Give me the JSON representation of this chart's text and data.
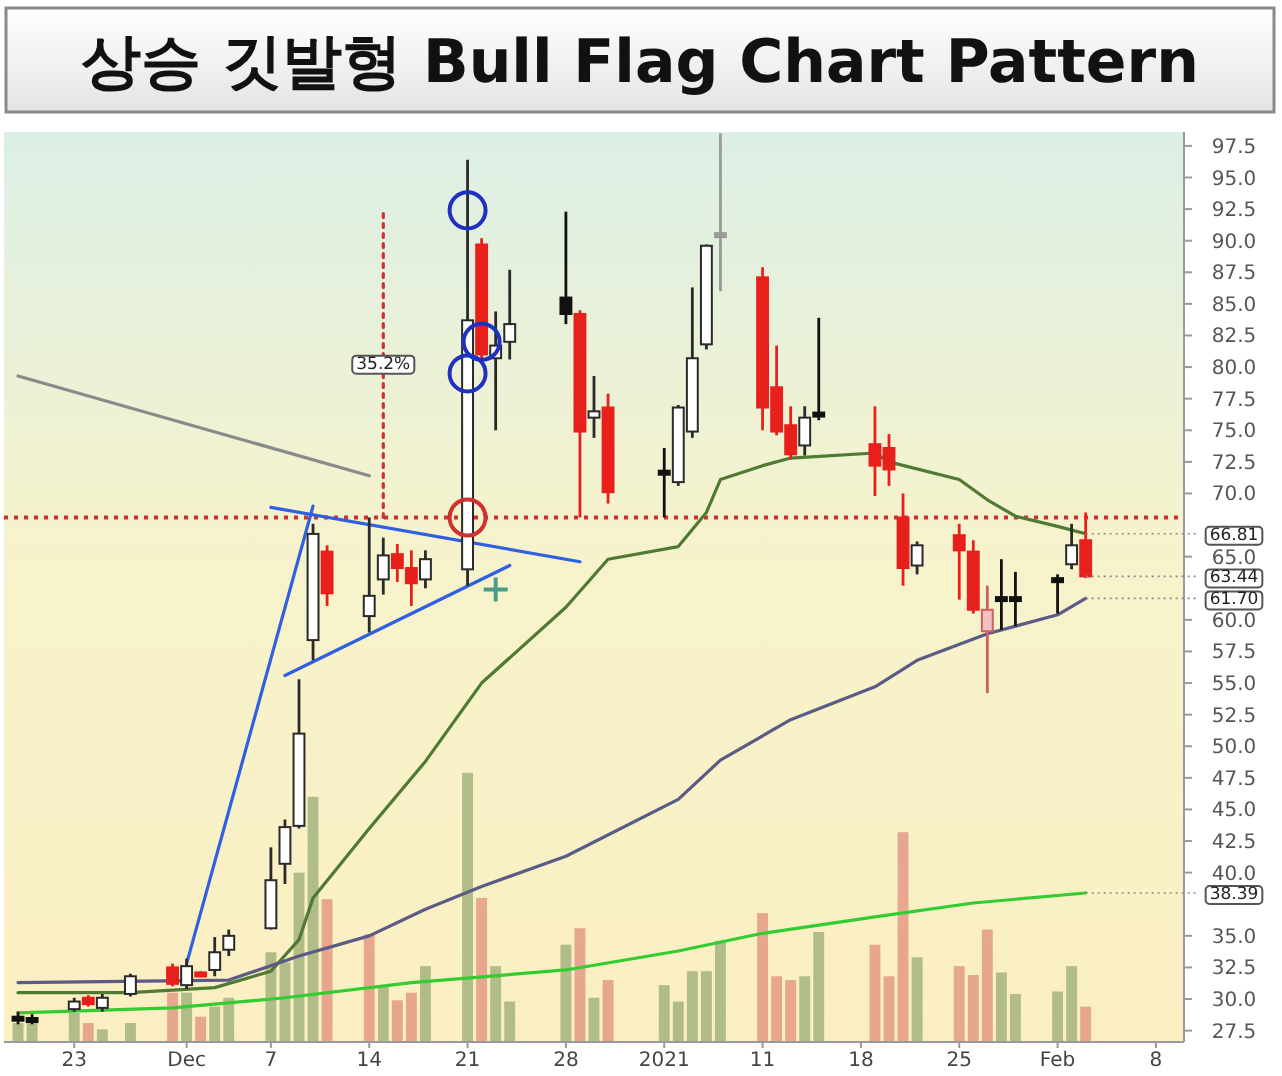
{
  "chart_data": {
    "type": "candlestick",
    "title": "상승 깃발형 Bull Flag Chart Pattern",
    "x": [
      "2020-11-19",
      "2020-11-20",
      "2020-11-23",
      "2020-11-24",
      "2020-11-25",
      "2020-11-27",
      "2020-11-30",
      "2020-12-01",
      "2020-12-02",
      "2020-12-03",
      "2020-12-04",
      "2020-12-07",
      "2020-12-08",
      "2020-12-09",
      "2020-12-10",
      "2020-12-11",
      "2020-12-14",
      "2020-12-15",
      "2020-12-16",
      "2020-12-17",
      "2020-12-18",
      "2020-12-21",
      "2020-12-22",
      "2020-12-23",
      "2020-12-24",
      "2020-12-28",
      "2020-12-29",
      "2020-12-30",
      "2020-12-31",
      "2021-01-04",
      "2021-01-05",
      "2021-01-06",
      "2021-01-07",
      "2021-01-08",
      "2021-01-11",
      "2021-01-12",
      "2021-01-13",
      "2021-01-14",
      "2021-01-15",
      "2021-01-19",
      "2021-01-20",
      "2021-01-21",
      "2021-01-22",
      "2021-01-25",
      "2021-01-26",
      "2021-01-27",
      "2021-01-28",
      "2021-01-29",
      "2021-02-01",
      "2021-02-02",
      "2021-02-03"
    ],
    "ohlc": [
      [
        28.6,
        29.0,
        28.0,
        28.4
      ],
      [
        28.5,
        28.8,
        28.0,
        28.3
      ],
      [
        29.2,
        30.1,
        29.0,
        29.8
      ],
      [
        30.1,
        30.3,
        29.4,
        29.6
      ],
      [
        29.3,
        30.4,
        29.0,
        30.1
      ],
      [
        30.4,
        32.0,
        30.2,
        31.8
      ],
      [
        32.5,
        32.8,
        31.0,
        31.2
      ],
      [
        31.1,
        33.2,
        30.8,
        32.6
      ],
      [
        32.1,
        32.2,
        31.8,
        31.9
      ],
      [
        32.3,
        34.9,
        31.8,
        33.7
      ],
      [
        33.9,
        35.5,
        33.4,
        35.0
      ],
      [
        35.6,
        42.0,
        35.5,
        39.4
      ],
      [
        40.7,
        44.2,
        39.1,
        43.6
      ],
      [
        43.7,
        55.3,
        43.5,
        51.0
      ],
      [
        58.4,
        67.6,
        56.8,
        66.8
      ],
      [
        65.4,
        65.9,
        61.1,
        62.1
      ],
      [
        60.3,
        68.1,
        59.0,
        61.9
      ],
      [
        63.2,
        66.5,
        62.0,
        65.1
      ],
      [
        65.2,
        66.0,
        63.0,
        64.1
      ],
      [
        64.1,
        65.5,
        61.1,
        62.9
      ],
      [
        63.2,
        65.5,
        62.5,
        64.8
      ],
      [
        64.0,
        96.4,
        62.7,
        83.7
      ],
      [
        89.7,
        90.2,
        80.5,
        81.0
      ],
      [
        80.7,
        84.4,
        75.0,
        81.7
      ],
      [
        82.0,
        87.7,
        80.6,
        83.4
      ],
      [
        84.2,
        92.3,
        83.4,
        85.5
      ],
      [
        84.2,
        84.5,
        68.1,
        74.9
      ],
      [
        76.0,
        79.3,
        74.4,
        76.5
      ],
      [
        76.8,
        77.9,
        69.2,
        70.1
      ],
      [
        71.6,
        73.6,
        68.1,
        71.8
      ],
      [
        70.9,
        77.0,
        70.6,
        76.8
      ],
      [
        74.9,
        86.3,
        74.4,
        80.7
      ],
      [
        81.8,
        89.7,
        81.4,
        89.6
      ],
      [
        90.6,
        98.5,
        86.0,
        90.4
      ],
      [
        87.1,
        87.9,
        75.0,
        76.8
      ],
      [
        78.4,
        81.7,
        74.6,
        74.9
      ],
      [
        75.4,
        76.9,
        72.7,
        73.1
      ],
      [
        73.8,
        76.9,
        73.0,
        76.0
      ],
      [
        76.2,
        83.9,
        75.8,
        76.4
      ],
      [
        73.9,
        76.9,
        69.8,
        72.2
      ],
      [
        73.6,
        74.7,
        70.6,
        71.9
      ],
      [
        68.1,
        70.0,
        62.7,
        64.1
      ],
      [
        64.3,
        66.2,
        63.6,
        65.9
      ],
      [
        66.7,
        67.6,
        61.6,
        65.5
      ],
      [
        65.4,
        66.3,
        60.5,
        60.8
      ],
      [
        59.1,
        62.7,
        54.2,
        60.8
      ],
      [
        61.6,
        64.8,
        59.2,
        61.8
      ],
      [
        61.6,
        63.8,
        59.5,
        61.8
      ],
      [
        63.1,
        63.6,
        60.5,
        63.3
      ],
      [
        64.4,
        67.6,
        64.0,
        65.9
      ],
      [
        66.3,
        68.5,
        63.3,
        63.44
      ]
    ],
    "colors": [
      "#111111",
      "#111111",
      "#ffffff",
      "#e8201c",
      "#ffffff",
      "#ffffff",
      "#e8201c",
      "#ffffff",
      "#e8201c",
      "#ffffff",
      "#ffffff",
      "#ffffff",
      "#ffffff",
      "#ffffff",
      "#ffffff",
      "#e8201c",
      "#ffffff",
      "#ffffff",
      "#e8201c",
      "#e8201c",
      "#ffffff",
      "#ffffff",
      "#e8201c",
      "#ffffff",
      "#ffffff",
      "#111111",
      "#e8201c",
      "#ffffff",
      "#e8201c",
      "#111111",
      "#ffffff",
      "#ffffff",
      "#ffffff",
      "#9a9a9a",
      "#e8201c",
      "#e8201c",
      "#e8201c",
      "#ffffff",
      "#111111",
      "#e8201c",
      "#e8201c",
      "#e8201c",
      "#ffffff",
      "#e8201c",
      "#e8201c",
      "#f2c0c0",
      "#111111",
      "#111111",
      "#111111",
      "#ffffff",
      "#e8201c"
    ],
    "series": [
      {
        "type": "bar",
        "values": [
          28.1,
          28.4,
          28.9,
          28.1,
          27.6,
          28.1,
          30.5,
          30.5,
          28.6,
          29.4,
          30.1,
          33.7,
          32.9,
          40.0,
          46.0,
          37.9,
          35.1,
          31.1,
          29.9,
          30.5,
          32.6,
          47.9,
          38.0,
          32.6,
          29.8,
          34.3,
          35.6,
          30.1,
          31.5,
          31.1,
          29.8,
          32.2,
          32.2,
          34.6,
          36.8,
          31.8,
          31.5,
          31.8,
          35.3,
          34.3,
          31.8,
          43.2,
          33.3,
          32.6,
          31.9,
          35.5,
          32.1,
          30.4,
          30.6,
          32.6,
          29.4
        ],
        "colors": [
          "#a3b37f",
          "#a3b37f",
          "#a3b37f",
          "#e39a86",
          "#a3b37f",
          "#a3b37f",
          "#e39a86",
          "#a3b37f",
          "#e39a86",
          "#a3b37f",
          "#a3b37f",
          "#a3b37f",
          "#a3b37f",
          "#a3b37f",
          "#a3b37f",
          "#e39a86",
          "#e39a86",
          "#a3b37f",
          "#e39a86",
          "#e39a86",
          "#a3b37f",
          "#a3b37f",
          "#e39a86",
          "#a3b37f",
          "#a3b37f",
          "#a3b37f",
          "#e39a86",
          "#a3b37f",
          "#e39a86",
          "#a3b37f",
          "#a3b37f",
          "#a3b37f",
          "#a3b37f",
          "#a3b37f",
          "#e39a86",
          "#e39a86",
          "#e39a86",
          "#a3b37f",
          "#a3b37f",
          "#e39a86",
          "#e39a86",
          "#e39a86",
          "#a3b37f",
          "#e39a86",
          "#e39a86",
          "#e39a86",
          "#a3b37f",
          "#a3b37f",
          "#a3b37f",
          "#a3b37f",
          "#e39a86"
        ]
      },
      {
        "type": "line",
        "color": "#4f7a33",
        "x": [
          "2020-11-19",
          "2020-11-27",
          "2020-12-03",
          "2020-12-07",
          "2020-12-09",
          "2020-12-10",
          "2020-12-14",
          "2020-12-18",
          "2020-12-22",
          "2020-12-28",
          "2020-12-31",
          "2021-01-05",
          "2021-01-07",
          "2021-01-08",
          "2021-01-11",
          "2021-01-13",
          "2021-01-19",
          "2021-01-20",
          "2021-01-25",
          "2021-01-27",
          "2021-01-29",
          "2021-02-01",
          "2021-02-03"
        ],
        "values": [
          30.5,
          30.5,
          30.9,
          32.2,
          34.7,
          38.0,
          43.5,
          48.8,
          55.0,
          61.0,
          64.8,
          65.8,
          68.5,
          71.1,
          72.2,
          72.8,
          73.2,
          72.5,
          71.1,
          69.5,
          68.2,
          67.4,
          66.81
        ]
      },
      {
        "type": "line",
        "color": "#5b5b86",
        "x": [
          "2020-11-19",
          "2020-12-04",
          "2020-12-09",
          "2020-12-14",
          "2020-12-18",
          "2020-12-22",
          "2020-12-28",
          "2021-01-05",
          "2021-01-08",
          "2021-01-13",
          "2021-01-19",
          "2021-01-22",
          "2021-01-27",
          "2021-02-01",
          "2021-02-03"
        ],
        "values": [
          31.3,
          31.5,
          33.4,
          35.0,
          37.1,
          38.9,
          41.3,
          45.8,
          48.9,
          52.1,
          54.7,
          56.8,
          58.9,
          60.4,
          61.7
        ]
      },
      {
        "type": "line",
        "color": "#33cc33",
        "x": [
          "2020-11-19",
          "2020-11-30",
          "2020-12-08",
          "2020-12-17",
          "2020-12-28",
          "2021-01-05",
          "2021-01-11",
          "2021-01-19",
          "2021-01-26",
          "2021-02-03"
        ],
        "values": [
          28.9,
          29.3,
          30.1,
          31.3,
          32.3,
          33.8,
          35.2,
          36.5,
          37.6,
          38.39
        ]
      },
      {
        "type": "line",
        "color": "#8a8a8a",
        "x": [
          "2020-11-19",
          "2020-12-14"
        ],
        "values": [
          79.3,
          71.4
        ]
      },
      {
        "type": "line",
        "color": "#3060e0",
        "x": [
          "2020-12-01",
          "2020-12-10"
        ],
        "values": [
          32.8,
          69.0
        ]
      },
      {
        "type": "line",
        "color": "#3060e0",
        "x": [
          "2020-12-07",
          "2020-12-29"
        ],
        "values": [
          68.9,
          64.6
        ]
      },
      {
        "type": "line",
        "color": "#3060e0",
        "x": [
          "2020-12-08",
          "2020-12-24"
        ],
        "values": [
          55.6,
          64.3
        ]
      },
      {
        "type": "line",
        "color": "#d03030",
        "line_style": "dotted",
        "x": [
          "2020-12-15",
          "2020-12-15"
        ],
        "values": [
          68.1,
          92.6
        ]
      },
      {
        "type": "scatter",
        "marker": "circle",
        "color": "#2030c0",
        "x": [
          "2020-12-21",
          "2020-12-22",
          "2020-12-21"
        ],
        "values": [
          92.4,
          82.0,
          79.5
        ]
      },
      {
        "type": "scatter",
        "marker": "circle",
        "color": "#d03030",
        "x": [
          "2020-12-21"
        ],
        "values": [
          68.1
        ]
      },
      {
        "type": "scatter",
        "marker": "cross",
        "color": "#4a9a8a",
        "x": [
          "2020-12-23"
        ],
        "values": [
          62.4
        ]
      }
    ],
    "ref_lines": [
      {
        "axis": "y",
        "value": 68.1,
        "color": "#d03030",
        "line_style": "dotted"
      }
    ],
    "annotations": [
      "35.2%",
      {
        "text": "66.81",
        "x": "2021-02-03",
        "y": 66.81
      },
      {
        "text": "63.44",
        "x": "2021-02-03",
        "y": 63.44
      },
      {
        "text": "61.70",
        "x": "2021-02-03",
        "y": 61.7
      },
      {
        "text": "38.39",
        "x": "2021-02-03",
        "y": 38.39
      }
    ],
    "xlim": [
      "2020-11-18",
      "2021-02-10"
    ],
    "xticks": [
      {
        "value": "2020-11-23",
        "label": "23"
      },
      {
        "value": "2020-12-01",
        "label": "Dec"
      },
      {
        "value": "2020-12-07",
        "label": "7"
      },
      {
        "value": "2020-12-14",
        "label": "14"
      },
      {
        "value": "2020-12-21",
        "label": "21"
      },
      {
        "value": "2020-12-28",
        "label": "28"
      },
      {
        "value": "2021-01-04",
        "label": "2021"
      },
      {
        "value": "2021-01-11",
        "label": "11"
      },
      {
        "value": "2021-01-18",
        "label": "18"
      },
      {
        "value": "2021-01-25",
        "label": "25"
      },
      {
        "value": "2021-02-01",
        "label": "Feb"
      },
      {
        "value": "2021-02-08",
        "label": "8"
      }
    ],
    "ylim": [
      26.6,
      98.6
    ],
    "yticks": [
      {
        "value": 27.5,
        "label": "27.5"
      },
      {
        "value": 30,
        "label": "30.0"
      },
      {
        "value": 32.5,
        "label": "32.5"
      },
      {
        "value": 35,
        "label": "35.0"
      },
      {
        "value": 40,
        "label": "40.0"
      },
      {
        "value": 42.5,
        "label": "42.5"
      },
      {
        "value": 45,
        "label": "45.0"
      },
      {
        "value": 47.5,
        "label": "47.5"
      },
      {
        "value": 50,
        "label": "50.0"
      },
      {
        "value": 52.5,
        "label": "52.5"
      },
      {
        "value": 55,
        "label": "55.0"
      },
      {
        "value": 57.5,
        "label": "57.5"
      },
      {
        "value": 60,
        "label": "60.0"
      },
      {
        "value": 65,
        "label": "65.0"
      },
      {
        "value": 70,
        "label": "70.0"
      },
      {
        "value": 72.5,
        "label": "72.5"
      },
      {
        "value": 75,
        "label": "75.0"
      },
      {
        "value": 77.5,
        "label": "77.5"
      },
      {
        "value": 80,
        "label": "80.0"
      },
      {
        "value": 82.5,
        "label": "82.5"
      },
      {
        "value": 85,
        "label": "85.0"
      },
      {
        "value": 87.5,
        "label": "87.5"
      },
      {
        "value": 90,
        "label": "90.0"
      },
      {
        "value": 92.5,
        "label": "92.5"
      },
      {
        "value": 95,
        "label": "95.0"
      },
      {
        "value": 97.5,
        "label": "97.5"
      }
    ]
  }
}
